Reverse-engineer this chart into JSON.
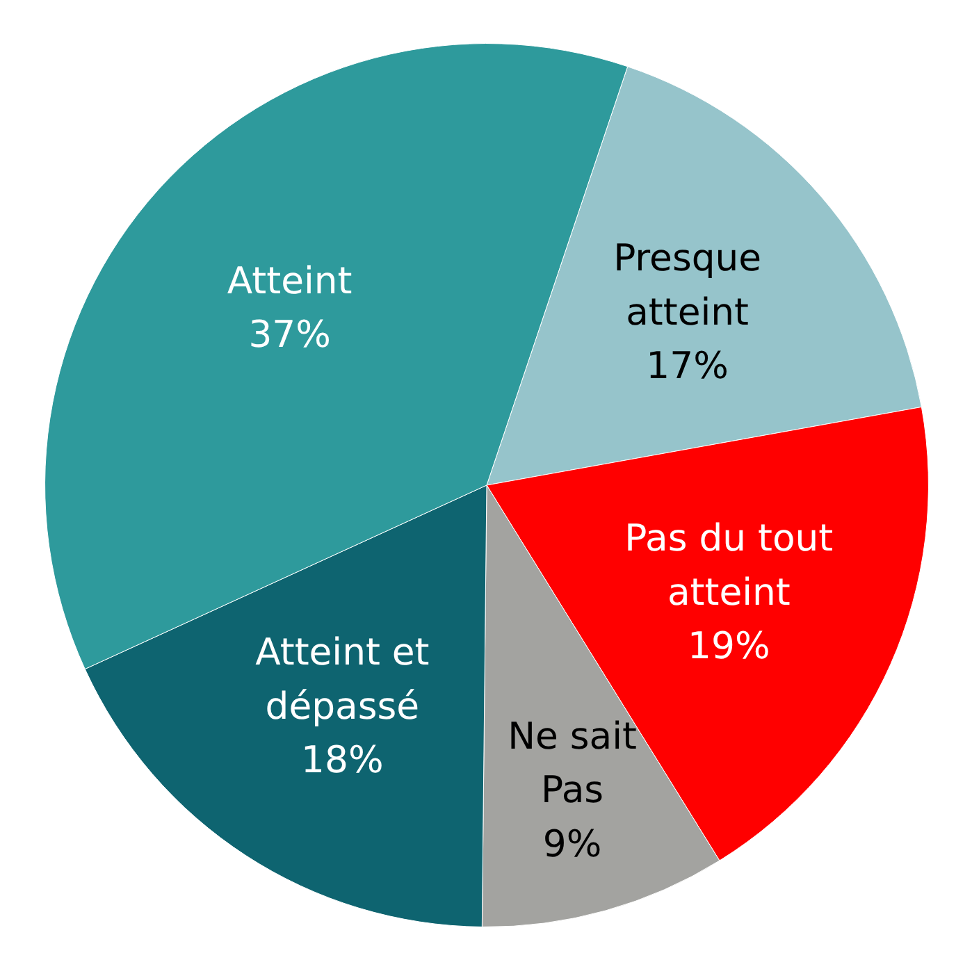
{
  "chart_data": {
    "type": "pie",
    "categories": [
      "Presque\natteint",
      "Pas du tout\natteint",
      "Ne sait\nPas",
      "Atteint et\ndépassé",
      "Atteint"
    ],
    "values": [
      17,
      19,
      9,
      18,
      37
    ],
    "colors": [
      "#96c4cb",
      "#ff0000",
      "#a3a3a0",
      "#0e6470",
      "#2e9a9c"
    ],
    "value_labels": [
      "17%",
      "19%",
      "9%",
      "18%",
      "37%"
    ]
  }
}
